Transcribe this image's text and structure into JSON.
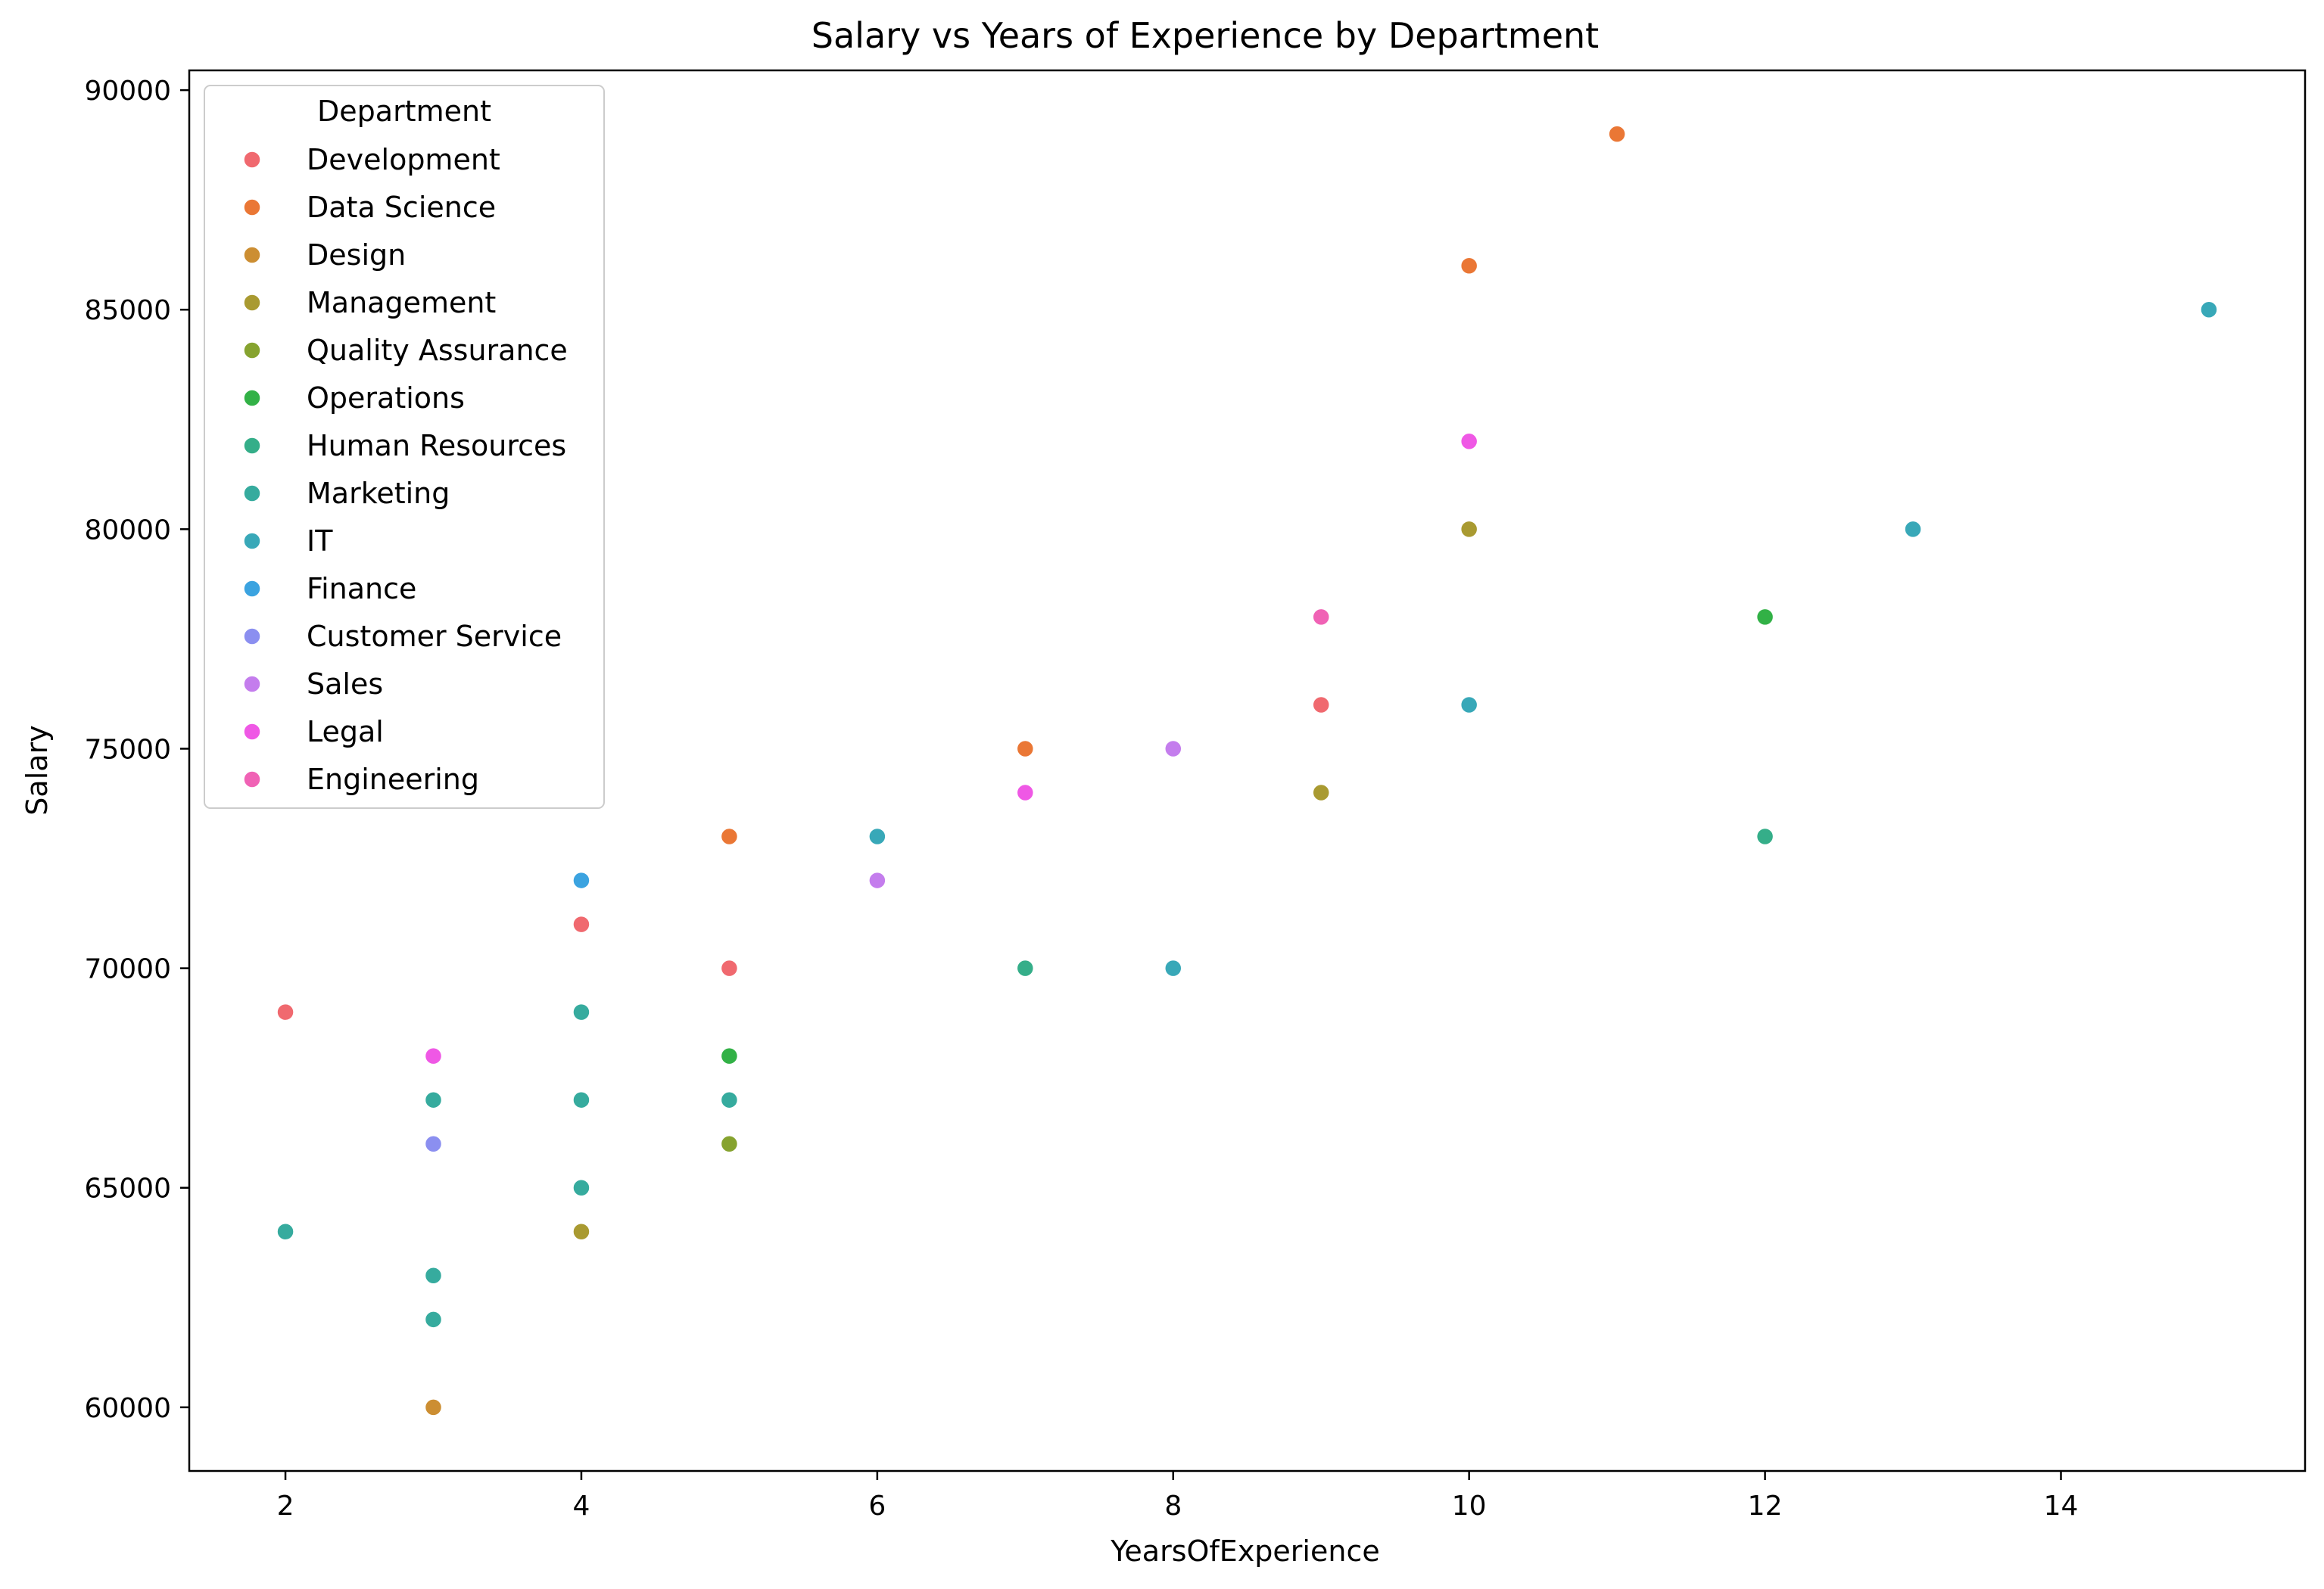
{
  "chart_data": {
    "type": "scatter",
    "title": "Salary vs Years of Experience by Department",
    "xlabel": "YearsOfExperience",
    "ylabel": "Salary",
    "xlim": [
      1.35,
      15.65
    ],
    "ylim": [
      58550,
      90450
    ],
    "x_ticks": [
      2,
      4,
      6,
      8,
      10,
      12,
      14
    ],
    "y_ticks": [
      60000,
      65000,
      70000,
      75000,
      80000,
      85000,
      90000
    ],
    "grid": false,
    "legend": {
      "title": "Department",
      "placement": "top-left"
    },
    "series": [
      {
        "name": "Development",
        "color": "#f0696f",
        "points": [
          {
            "x": 2,
            "y": 69000
          },
          {
            "x": 4,
            "y": 71000
          },
          {
            "x": 5,
            "y": 70000
          },
          {
            "x": 9,
            "y": 76000
          }
        ]
      },
      {
        "name": "Data Science",
        "color": "#ea7735",
        "points": [
          {
            "x": 5,
            "y": 73000
          },
          {
            "x": 7,
            "y": 75000
          },
          {
            "x": 10,
            "y": 86000
          },
          {
            "x": 11,
            "y": 89000
          }
        ]
      },
      {
        "name": "Design",
        "color": "#cc8e32",
        "points": [
          {
            "x": 3,
            "y": 60000
          }
        ]
      },
      {
        "name": "Management",
        "color": "#a99a31",
        "points": [
          {
            "x": 4,
            "y": 64000
          },
          {
            "x": 9,
            "y": 74000
          },
          {
            "x": 10,
            "y": 80000
          }
        ]
      },
      {
        "name": "Quality Assurance",
        "color": "#86a32f",
        "points": [
          {
            "x": 5,
            "y": 66000
          }
        ]
      },
      {
        "name": "Operations",
        "color": "#32b146",
        "points": [
          {
            "x": 5,
            "y": 68000
          },
          {
            "x": 12,
            "y": 78000
          }
        ]
      },
      {
        "name": "Human Resources",
        "color": "#35ae89",
        "points": [
          {
            "x": 7,
            "y": 70000
          },
          {
            "x": 12,
            "y": 73000
          }
        ]
      },
      {
        "name": "Marketing",
        "color": "#36ab9e",
        "points": [
          {
            "x": 2,
            "y": 64000
          },
          {
            "x": 3,
            "y": 62000
          },
          {
            "x": 3,
            "y": 63000
          },
          {
            "x": 3,
            "y": 67000
          },
          {
            "x": 4,
            "y": 65000
          },
          {
            "x": 4,
            "y": 67000
          },
          {
            "x": 4,
            "y": 69000
          },
          {
            "x": 5,
            "y": 67000
          }
        ]
      },
      {
        "name": "IT",
        "color": "#38a8b8",
        "points": [
          {
            "x": 6,
            "y": 73000
          },
          {
            "x": 8,
            "y": 70000
          },
          {
            "x": 10,
            "y": 76000
          },
          {
            "x": 13,
            "y": 80000
          },
          {
            "x": 15,
            "y": 85000
          }
        ]
      },
      {
        "name": "Finance",
        "color": "#3ba3e0",
        "points": [
          {
            "x": 4,
            "y": 72000
          }
        ]
      },
      {
        "name": "Customer Service",
        "color": "#8b8ff0",
        "points": [
          {
            "x": 3,
            "y": 66000
          }
        ]
      },
      {
        "name": "Sales",
        "color": "#c47ded",
        "points": [
          {
            "x": 6,
            "y": 72000
          },
          {
            "x": 8,
            "y": 75000
          }
        ]
      },
      {
        "name": "Legal",
        "color": "#ef58e5",
        "points": [
          {
            "x": 3,
            "y": 68000
          },
          {
            "x": 7,
            "y": 74000
          },
          {
            "x": 10,
            "y": 82000
          }
        ]
      },
      {
        "name": "Engineering",
        "color": "#f062b5",
        "points": [
          {
            "x": 9,
            "y": 78000
          }
        ]
      }
    ]
  }
}
